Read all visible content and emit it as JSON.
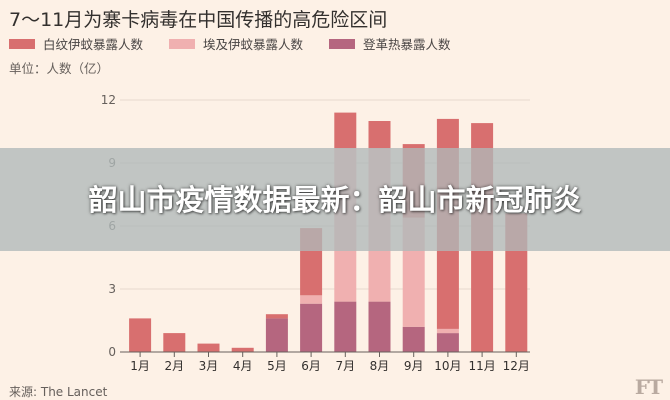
{
  "chart_data": {
    "type": "bar",
    "stacked": true,
    "title": "7～11月为寨卡病毒在中国传播的高危险区间",
    "unit_label": "单位：人数（亿）",
    "categories": [
      "1月",
      "2月",
      "3月",
      "4月",
      "5月",
      "6月",
      "7月",
      "8月",
      "9月",
      "10月",
      "11月",
      "12月"
    ],
    "series": [
      {
        "name": "登革热暴露人数",
        "color": "#b5667f",
        "values": [
          0,
          0,
          0,
          0,
          1.6,
          2.3,
          2.4,
          2.4,
          1.2,
          0.9,
          0,
          0
        ]
      },
      {
        "name": "埃及伊蚊暴露人数",
        "color": "#f0b0b0",
        "values": [
          0,
          0,
          0,
          0,
          0,
          0.4,
          7.3,
          7.3,
          5.2,
          0.2,
          0,
          0
        ]
      },
      {
        "name": "白纹伊蚊暴露人数",
        "color": "#d86f6f",
        "values": [
          1.6,
          0.9,
          0.4,
          0.2,
          0.2,
          3.2,
          1.7,
          1.3,
          3.5,
          10.0,
          10.9,
          6.6
        ]
      }
    ],
    "legend_order": [
      "白纹伊蚊暴露人数",
      "埃及伊蚊暴露人数",
      "登革热暴露人数"
    ],
    "ylim": [
      0,
      12
    ],
    "yticks": [
      0,
      3,
      6,
      9,
      12
    ],
    "grid": true,
    "legend_position": "top-left"
  },
  "source": "来源: The Lancet",
  "logo": "FT",
  "overlay": {
    "text": "韶山市疫情数据最新：韶山市新冠肺炎"
  }
}
